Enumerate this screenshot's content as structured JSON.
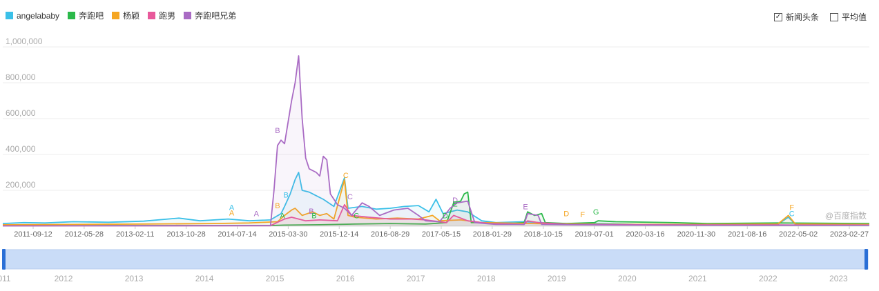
{
  "legend": [
    {
      "name": "angelababy",
      "color": "#3bc0e8"
    },
    {
      "name": "奔跑吧",
      "color": "#2bb94a"
    },
    {
      "name": "杨颖",
      "color": "#f5a623"
    },
    {
      "name": "跑男",
      "color": "#e8599b"
    },
    {
      "name": "奔跑吧兄弟",
      "color": "#a96bc4"
    }
  ],
  "options": {
    "news_label": "新闻头条",
    "news_checked": "✓",
    "avg_label": "平均值"
  },
  "watermark": "@百度指数",
  "chart_data": {
    "type": "line",
    "title": "",
    "ylim": [
      0,
      1000000
    ],
    "y_ticks": [
      "1,000,000",
      "800,000",
      "600,000",
      "400,000",
      "200,000"
    ],
    "y_tick_values": [
      1000000,
      800000,
      600000,
      400000,
      200000
    ],
    "x_tick_labels": [
      "2011-09-12",
      "2012-05-28",
      "2013-02-11",
      "2013-10-28",
      "2014-07-14",
      "2015-03-30",
      "2015-12-14",
      "2016-08-29",
      "2017-05-15",
      "2018-01-29",
      "2018-10-15",
      "2019-07-01",
      "2020-03-16",
      "2020-11-30",
      "2021-08-16",
      "2022-05-02",
      "2023-02-27"
    ],
    "xlim": [
      2011.0,
      2023.3
    ],
    "series": [
      {
        "name": "angelababy",
        "color": "#3bc0e8",
        "points": [
          [
            2011.0,
            15000
          ],
          [
            2011.3,
            20000
          ],
          [
            2011.6,
            18000
          ],
          [
            2012.0,
            25000
          ],
          [
            2012.5,
            22000
          ],
          [
            2013.0,
            28000
          ],
          [
            2013.5,
            45000
          ],
          [
            2013.8,
            30000
          ],
          [
            2014.2,
            40000
          ],
          [
            2014.5,
            30000
          ],
          [
            2014.8,
            35000
          ],
          [
            2014.95,
            70000
          ],
          [
            2015.0,
            110000
          ],
          [
            2015.08,
            180000
          ],
          [
            2015.15,
            260000
          ],
          [
            2015.2,
            300000
          ],
          [
            2015.25,
            200000
          ],
          [
            2015.35,
            190000
          ],
          [
            2015.45,
            170000
          ],
          [
            2015.55,
            150000
          ],
          [
            2015.7,
            110000
          ],
          [
            2015.85,
            270000
          ],
          [
            2015.9,
            100000
          ],
          [
            2016.1,
            110000
          ],
          [
            2016.3,
            95000
          ],
          [
            2016.5,
            100000
          ],
          [
            2016.7,
            110000
          ],
          [
            2016.9,
            115000
          ],
          [
            2017.05,
            80000
          ],
          [
            2017.15,
            150000
          ],
          [
            2017.25,
            70000
          ],
          [
            2017.45,
            90000
          ],
          [
            2017.6,
            80000
          ],
          [
            2017.8,
            30000
          ],
          [
            2018.0,
            20000
          ],
          [
            2018.4,
            25000
          ],
          [
            2018.9,
            15000
          ],
          [
            2019.5,
            15000
          ],
          [
            2020.0,
            10000
          ],
          [
            2021.0,
            10000
          ],
          [
            2022.0,
            10000
          ],
          [
            2022.15,
            50000
          ],
          [
            2022.25,
            10000
          ],
          [
            2023.3,
            10000
          ]
        ]
      },
      {
        "name": "奔跑吧",
        "color": "#2bb94a",
        "points": [
          [
            2011.0,
            3000
          ],
          [
            2014.8,
            4000
          ],
          [
            2015.0,
            6000
          ],
          [
            2015.5,
            8000
          ],
          [
            2016.0,
            12000
          ],
          [
            2016.5,
            15000
          ],
          [
            2017.0,
            12000
          ],
          [
            2017.3,
            20000
          ],
          [
            2017.4,
            130000
          ],
          [
            2017.5,
            140000
          ],
          [
            2017.55,
            180000
          ],
          [
            2017.6,
            190000
          ],
          [
            2017.65,
            20000
          ],
          [
            2017.9,
            20000
          ],
          [
            2018.2,
            15000
          ],
          [
            2018.4,
            20000
          ],
          [
            2018.45,
            80000
          ],
          [
            2018.55,
            60000
          ],
          [
            2018.65,
            70000
          ],
          [
            2018.7,
            20000
          ],
          [
            2019.0,
            15000
          ],
          [
            2019.4,
            20000
          ],
          [
            2019.45,
            30000
          ],
          [
            2019.7,
            25000
          ],
          [
            2020.5,
            20000
          ],
          [
            2021.0,
            15000
          ],
          [
            2022.0,
            18000
          ],
          [
            2023.3,
            15000
          ]
        ]
      },
      {
        "name": "杨颖",
        "color": "#f5a623",
        "points": [
          [
            2011.0,
            8000
          ],
          [
            2012.0,
            10000
          ],
          [
            2013.0,
            12000
          ],
          [
            2014.0,
            15000
          ],
          [
            2014.5,
            18000
          ],
          [
            2014.9,
            25000
          ],
          [
            2015.0,
            60000
          ],
          [
            2015.1,
            90000
          ],
          [
            2015.15,
            100000
          ],
          [
            2015.25,
            60000
          ],
          [
            2015.4,
            80000
          ],
          [
            2015.5,
            60000
          ],
          [
            2015.6,
            70000
          ],
          [
            2015.7,
            40000
          ],
          [
            2015.85,
            260000
          ],
          [
            2015.9,
            60000
          ],
          [
            2016.0,
            50000
          ],
          [
            2016.3,
            40000
          ],
          [
            2016.6,
            45000
          ],
          [
            2016.9,
            40000
          ],
          [
            2017.1,
            60000
          ],
          [
            2017.2,
            30000
          ],
          [
            2017.5,
            35000
          ],
          [
            2017.8,
            20000
          ],
          [
            2018.5,
            15000
          ],
          [
            2019.0,
            12000
          ],
          [
            2020.0,
            10000
          ],
          [
            2021.0,
            10000
          ],
          [
            2022.0,
            12000
          ],
          [
            2022.15,
            60000
          ],
          [
            2022.25,
            12000
          ],
          [
            2023.3,
            10000
          ]
        ]
      },
      {
        "name": "跑男",
        "color": "#e8599b",
        "points": [
          [
            2011.0,
            2000
          ],
          [
            2014.8,
            3000
          ],
          [
            2015.0,
            40000
          ],
          [
            2015.1,
            50000
          ],
          [
            2015.3,
            30000
          ],
          [
            2015.5,
            35000
          ],
          [
            2015.75,
            30000
          ],
          [
            2015.85,
            120000
          ],
          [
            2015.95,
            60000
          ],
          [
            2016.2,
            50000
          ],
          [
            2016.5,
            40000
          ],
          [
            2016.8,
            40000
          ],
          [
            2017.0,
            35000
          ],
          [
            2017.3,
            20000
          ],
          [
            2017.4,
            60000
          ],
          [
            2017.6,
            30000
          ],
          [
            2017.9,
            15000
          ],
          [
            2018.4,
            10000
          ],
          [
            2018.45,
            30000
          ],
          [
            2018.6,
            20000
          ],
          [
            2019.0,
            10000
          ],
          [
            2020.0,
            8000
          ],
          [
            2021.0,
            7000
          ],
          [
            2022.0,
            7000
          ],
          [
            2023.3,
            6000
          ]
        ]
      },
      {
        "name": "奔跑吧兄弟",
        "color": "#a96bc4",
        "points": [
          [
            2011.0,
            2000
          ],
          [
            2014.8,
            3000
          ],
          [
            2014.85,
            200000
          ],
          [
            2014.9,
            450000
          ],
          [
            2014.95,
            480000
          ],
          [
            2015.0,
            460000
          ],
          [
            2015.05,
            580000
          ],
          [
            2015.1,
            700000
          ],
          [
            2015.15,
            800000
          ],
          [
            2015.2,
            950000
          ],
          [
            2015.25,
            600000
          ],
          [
            2015.3,
            380000
          ],
          [
            2015.35,
            320000
          ],
          [
            2015.45,
            300000
          ],
          [
            2015.5,
            280000
          ],
          [
            2015.55,
            390000
          ],
          [
            2015.6,
            370000
          ],
          [
            2015.65,
            180000
          ],
          [
            2015.75,
            120000
          ],
          [
            2015.85,
            100000
          ],
          [
            2015.95,
            60000
          ],
          [
            2016.1,
            130000
          ],
          [
            2016.2,
            110000
          ],
          [
            2016.35,
            60000
          ],
          [
            2016.55,
            90000
          ],
          [
            2016.75,
            100000
          ],
          [
            2016.9,
            60000
          ],
          [
            2017.0,
            30000
          ],
          [
            2017.2,
            25000
          ],
          [
            2017.35,
            100000
          ],
          [
            2017.45,
            130000
          ],
          [
            2017.6,
            140000
          ],
          [
            2017.7,
            20000
          ],
          [
            2018.0,
            10000
          ],
          [
            2018.4,
            10000
          ],
          [
            2018.45,
            70000
          ],
          [
            2018.6,
            60000
          ],
          [
            2018.65,
            10000
          ],
          [
            2019.0,
            8000
          ],
          [
            2020.0,
            6000
          ],
          [
            2022.0,
            5000
          ],
          [
            2023.3,
            5000
          ]
        ]
      }
    ],
    "annotations": [
      {
        "label": "A",
        "color": "#3bc0e8",
        "x": 2014.25,
        "y": 90000
      },
      {
        "label": "A",
        "color": "#f5a623",
        "x": 2014.25,
        "y": 60000
      },
      {
        "label": "A",
        "color": "#a96bc4",
        "x": 2014.6,
        "y": 55000
      },
      {
        "label": "A",
        "color": "#2bb94a",
        "x": 2014.97,
        "y": 45000
      },
      {
        "label": "B",
        "color": "#a96bc4",
        "x": 2014.9,
        "y": 520000
      },
      {
        "label": "B",
        "color": "#3bc0e8",
        "x": 2015.02,
        "y": 160000
      },
      {
        "label": "B",
        "color": "#f5a623",
        "x": 2014.9,
        "y": 100000
      },
      {
        "label": "B",
        "color": "#a96bc4",
        "x": 2015.38,
        "y": 70000
      },
      {
        "label": "B",
        "color": "#2bb94a",
        "x": 2015.42,
        "y": 45000
      },
      {
        "label": "C",
        "color": "#f5a623",
        "x": 2015.87,
        "y": 270000
      },
      {
        "label": "C",
        "color": "#a96bc4",
        "x": 2015.93,
        "y": 150000
      },
      {
        "label": "C",
        "color": "#2bb94a",
        "x": 2016.02,
        "y": 45000
      },
      {
        "label": "D",
        "color": "#2bb94a",
        "x": 2017.28,
        "y": 45000
      },
      {
        "label": "D",
        "color": "#a96bc4",
        "x": 2017.42,
        "y": 130000
      },
      {
        "label": "E",
        "color": "#2bb94a",
        "x": 2017.42,
        "y": 110000
      },
      {
        "label": "E",
        "color": "#a96bc4",
        "x": 2018.42,
        "y": 95000
      },
      {
        "label": "D",
        "color": "#f5a623",
        "x": 2019.0,
        "y": 55000
      },
      {
        "label": "F",
        "color": "#f5a623",
        "x": 2019.23,
        "y": 50000
      },
      {
        "label": "G",
        "color": "#2bb94a",
        "x": 2019.42,
        "y": 65000
      },
      {
        "label": "F",
        "color": "#f5a623",
        "x": 2022.2,
        "y": 90000
      },
      {
        "label": "C",
        "color": "#3bc0e8",
        "x": 2022.2,
        "y": 55000
      }
    ],
    "navigator_labels": [
      "011",
      "2012",
      "2013",
      "2014",
      "2015",
      "2016",
      "2017",
      "2018",
      "2019",
      "2020",
      "2021",
      "2022",
      "2023"
    ],
    "navigator_values": [
      2011,
      2012,
      2013,
      2014,
      2015,
      2016,
      2017,
      2018,
      2019,
      2020,
      2021,
      2022,
      2023
    ]
  }
}
